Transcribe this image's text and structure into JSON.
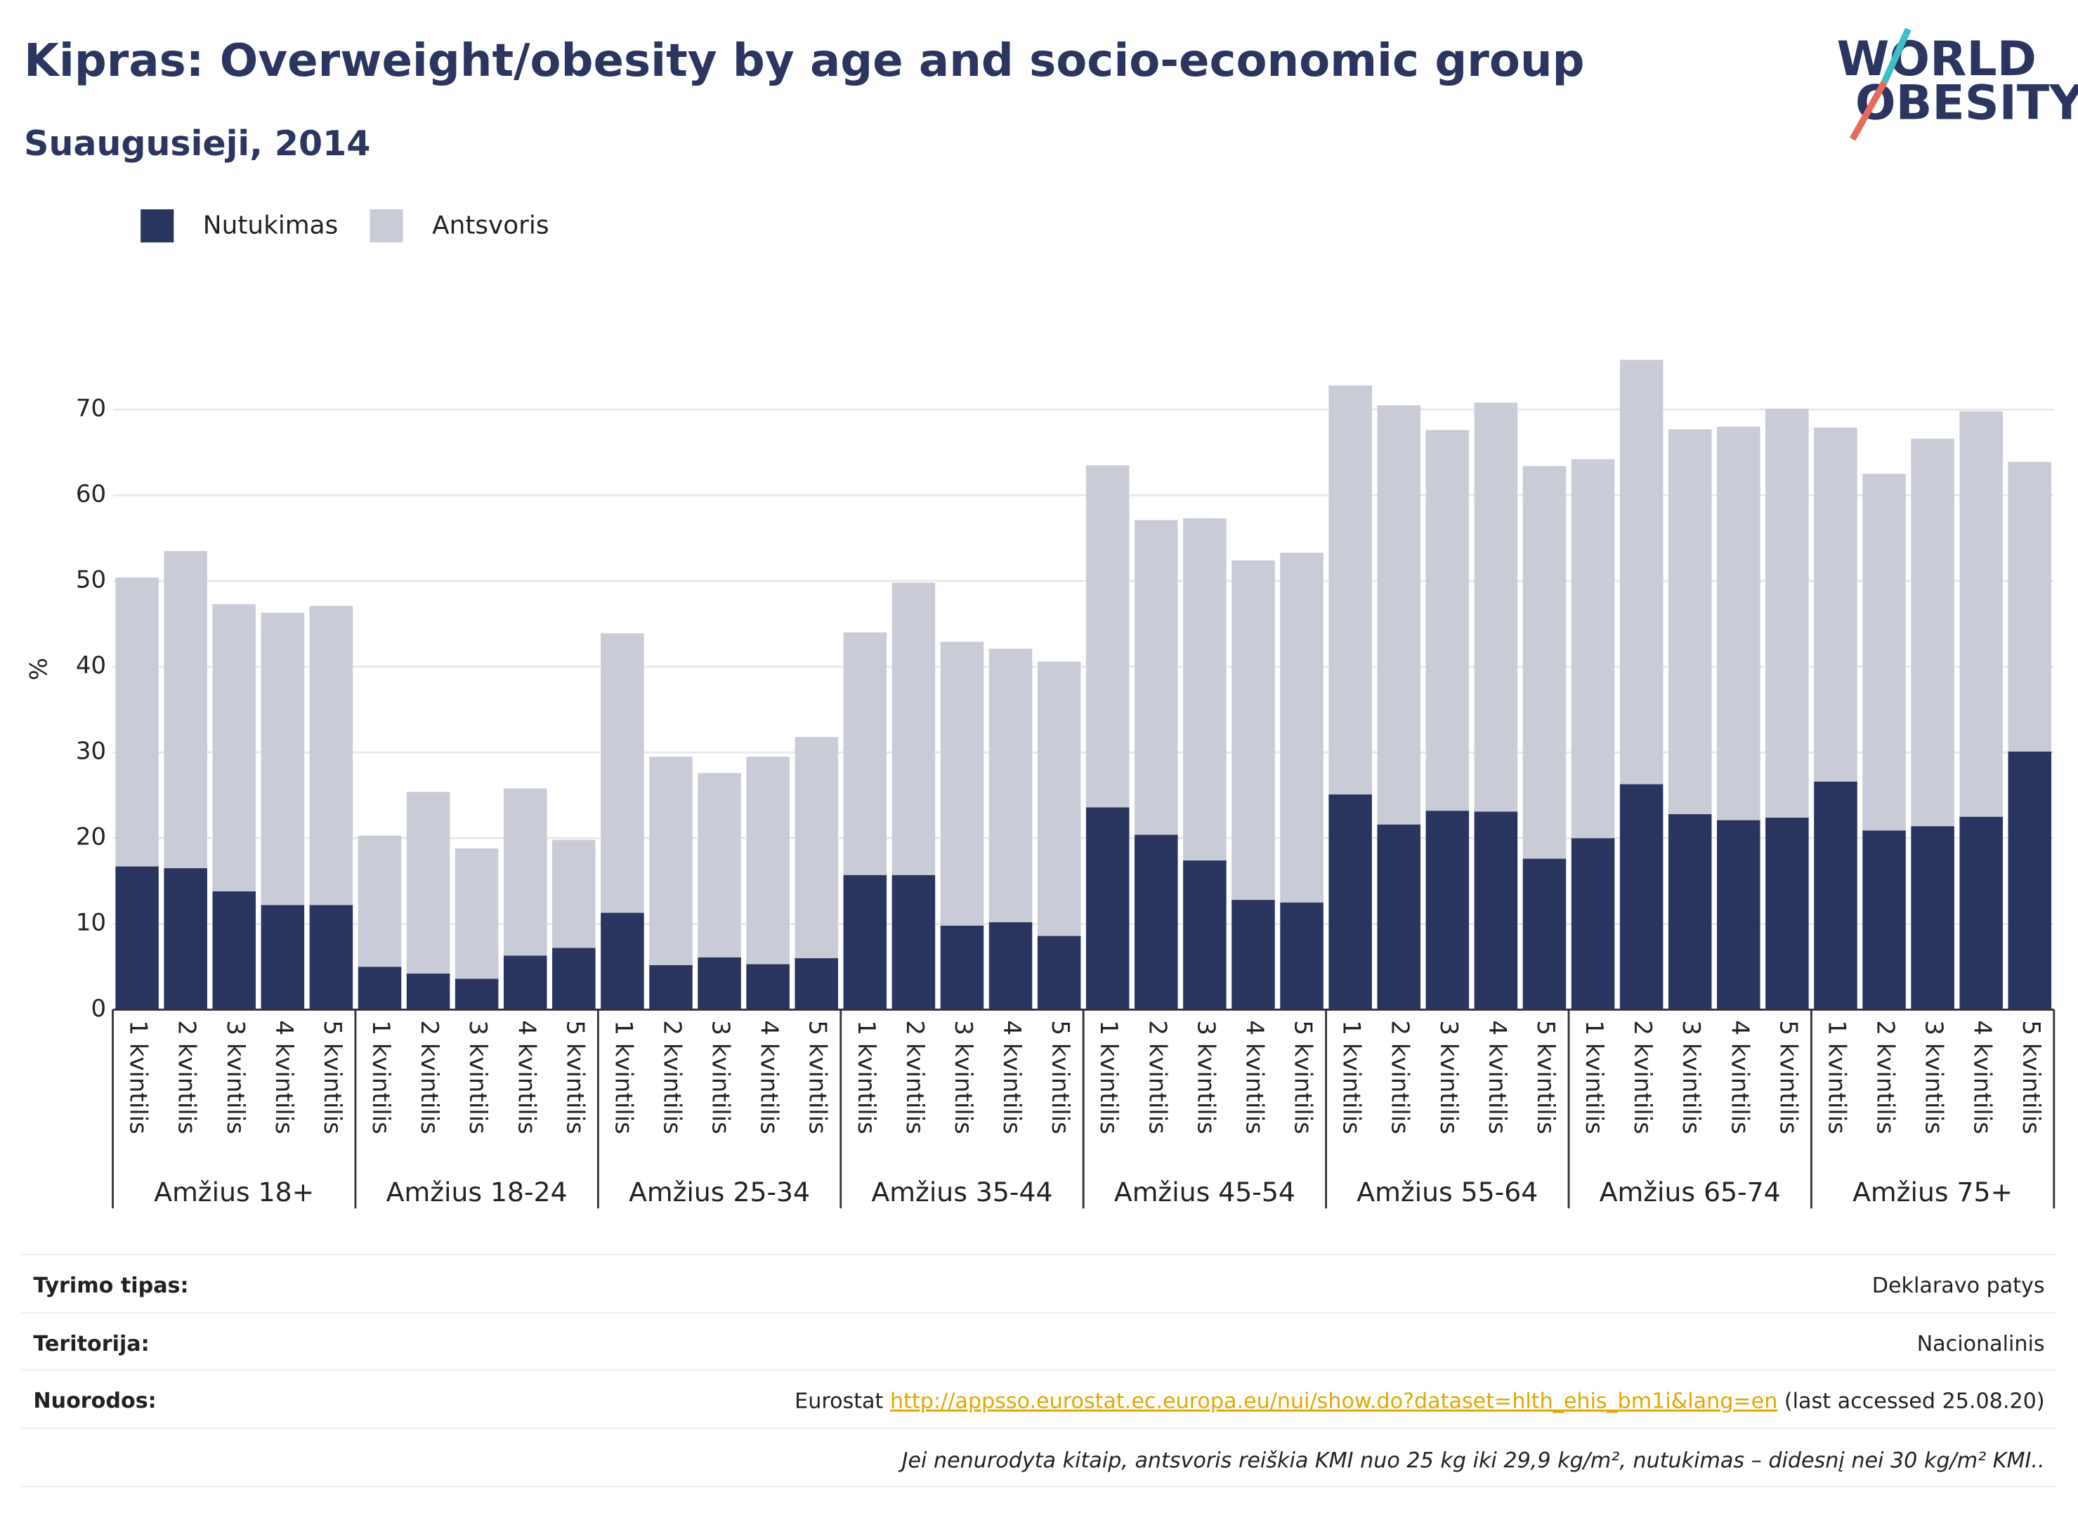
{
  "chart_data": {
    "type": "stacked-bar",
    "title": "Kipras: Overweight/obesity by age and socio-economic group",
    "subtitle": "Suaugusieji, 2014",
    "y_label": "%",
    "groups": [
      "Amžius 18+",
      "Amžius 18-24",
      "Amžius 25-34",
      "Amžius 35-44",
      "Amžius 45-54",
      "Amžius 55-64",
      "Amžius 65-74",
      "Amžius 75+"
    ],
    "categories": [
      "1 kvintilis",
      "2 kvintilis",
      "3 kvintilis",
      "4 kvintilis",
      "5 kvintilis",
      "1 kvintilis",
      "2 kvintilis",
      "3 kvintilis",
      "4 kvintilis",
      "5 kvintilis",
      "1 kvintilis",
      "2 kvintilis",
      "3 kvintilis",
      "4 kvintilis",
      "5 kvintilis",
      "1 kvintilis",
      "2 kvintilis",
      "3 kvintilis",
      "4 kvintilis",
      "5 kvintilis",
      "1 kvintilis",
      "2 kvintilis",
      "3 kvintilis",
      "4 kvintilis",
      "5 kvintilis",
      "1 kvintilis",
      "2 kvintilis",
      "3 kvintilis",
      "4 kvintilis",
      "5 kvintilis",
      "1 kvintilis",
      "2 kvintilis",
      "3 kvintilis",
      "4 kvintilis",
      "5 kvintilis",
      "1 kvintilis",
      "2 kvintilis",
      "3 kvintilis",
      "4 kvintilis",
      "5 kvintilis"
    ],
    "series": [
      {
        "name": "Nutukimas",
        "color": "#29355f",
        "values": [
          16.7,
          16.5,
          13.8,
          12.2,
          12.2,
          5.0,
          4.2,
          3.6,
          6.3,
          7.2,
          11.3,
          5.2,
          6.1,
          5.3,
          6.0,
          15.7,
          15.7,
          9.8,
          10.2,
          8.6,
          23.6,
          20.4,
          17.4,
          12.8,
          12.5,
          25.1,
          21.6,
          23.2,
          23.1,
          17.6,
          20.0,
          26.3,
          22.8,
          22.1,
          22.4,
          26.6,
          20.9,
          21.4,
          22.5,
          30.1
        ]
      },
      {
        "name": "Antsvoris",
        "color": "#c9cbd7",
        "values": [
          33.7,
          37.0,
          33.5,
          34.1,
          34.9,
          15.3,
          21.2,
          15.2,
          19.5,
          12.6,
          32.6,
          24.3,
          21.5,
          24.2,
          25.8,
          28.3,
          34.1,
          33.1,
          31.9,
          32.0,
          39.9,
          36.7,
          39.9,
          39.6,
          40.8,
          47.7,
          48.9,
          44.4,
          47.7,
          45.8,
          44.2,
          49.5,
          44.9,
          45.9,
          47.7,
          41.3,
          41.6,
          45.2,
          47.3,
          33.8
        ]
      }
    ],
    "ylim": [
      0,
      77
    ],
    "yticks": [
      0,
      10,
      20,
      30,
      40,
      50,
      60,
      70
    ],
    "grid": true
  },
  "logo": {
    "line1": "WORLD",
    "line2": "OBESITY"
  },
  "details": {
    "rows": [
      {
        "label": "Tyrimo tipas:",
        "value": "Deklaravo patys"
      },
      {
        "label": "Teritorija:",
        "value": "Nacionalinis"
      }
    ],
    "reference": {
      "label": "Nuorodos:",
      "source": "Eurostat",
      "link": "http://appsso.eurostat.ec.europa.eu/nui/show.do?dataset=hlth_ehis_bm1i&lang=en",
      "note": "(last accessed 25.08.20)"
    },
    "footnote": "Jei nenurodyta kitaip, antsvoris reiškia KMI nuo 25 kg iki 29,9 kg/m², nutukimas – didesnį nei 30 kg/m² KMI.."
  }
}
